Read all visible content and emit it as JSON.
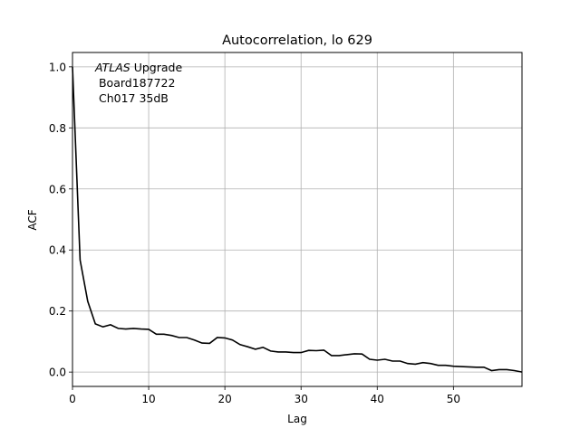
{
  "chart_data": {
    "type": "line",
    "title": "Autocorrelation, lo 629",
    "xlabel": "Lag",
    "ylabel": "ACF",
    "xlim": [
      0,
      59
    ],
    "ylim": [
      -0.047,
      1.047
    ],
    "xticks": [
      0,
      10,
      20,
      30,
      40,
      50
    ],
    "yticks": [
      0.0,
      0.2,
      0.4,
      0.6,
      0.8,
      1.0
    ],
    "xtick_labels": [
      "0",
      "10",
      "20",
      "30",
      "40",
      "50"
    ],
    "ytick_labels": [
      "0.0",
      "0.2",
      "0.4",
      "0.6",
      "0.8",
      "1.0"
    ],
    "grid": true,
    "annotation": {
      "italic": "ATLAS",
      "line1_rest": " Upgrade",
      "line2": " Board187722",
      "line3": " Ch017 35dB"
    },
    "series": [
      {
        "color": "#000000",
        "x": [
          0,
          1,
          2,
          3,
          4,
          5,
          6,
          7,
          8,
          9,
          10,
          11,
          12,
          13,
          14,
          15,
          16,
          17,
          18,
          19,
          20,
          21,
          22,
          23,
          24,
          25,
          26,
          27,
          28,
          29,
          30,
          31,
          32,
          33,
          34,
          35,
          36,
          37,
          38,
          39,
          40,
          41,
          42,
          43,
          44,
          45,
          46,
          47,
          48,
          49,
          50,
          51,
          52,
          53,
          54,
          55,
          56,
          57,
          58,
          59
        ],
        "values": [
          1.0,
          0.367,
          0.232,
          0.158,
          0.148,
          0.155,
          0.143,
          0.141,
          0.143,
          0.141,
          0.14,
          0.124,
          0.124,
          0.12,
          0.113,
          0.113,
          0.105,
          0.095,
          0.094,
          0.113,
          0.112,
          0.105,
          0.09,
          0.083,
          0.075,
          0.081,
          0.069,
          0.066,
          0.066,
          0.064,
          0.064,
          0.071,
          0.07,
          0.072,
          0.054,
          0.054,
          0.057,
          0.06,
          0.059,
          0.042,
          0.039,
          0.042,
          0.036,
          0.036,
          0.028,
          0.026,
          0.031,
          0.028,
          0.022,
          0.022,
          0.019,
          0.018,
          0.017,
          0.016,
          0.016,
          0.005,
          0.008,
          0.008,
          0.005,
          0.0
        ]
      }
    ]
  }
}
